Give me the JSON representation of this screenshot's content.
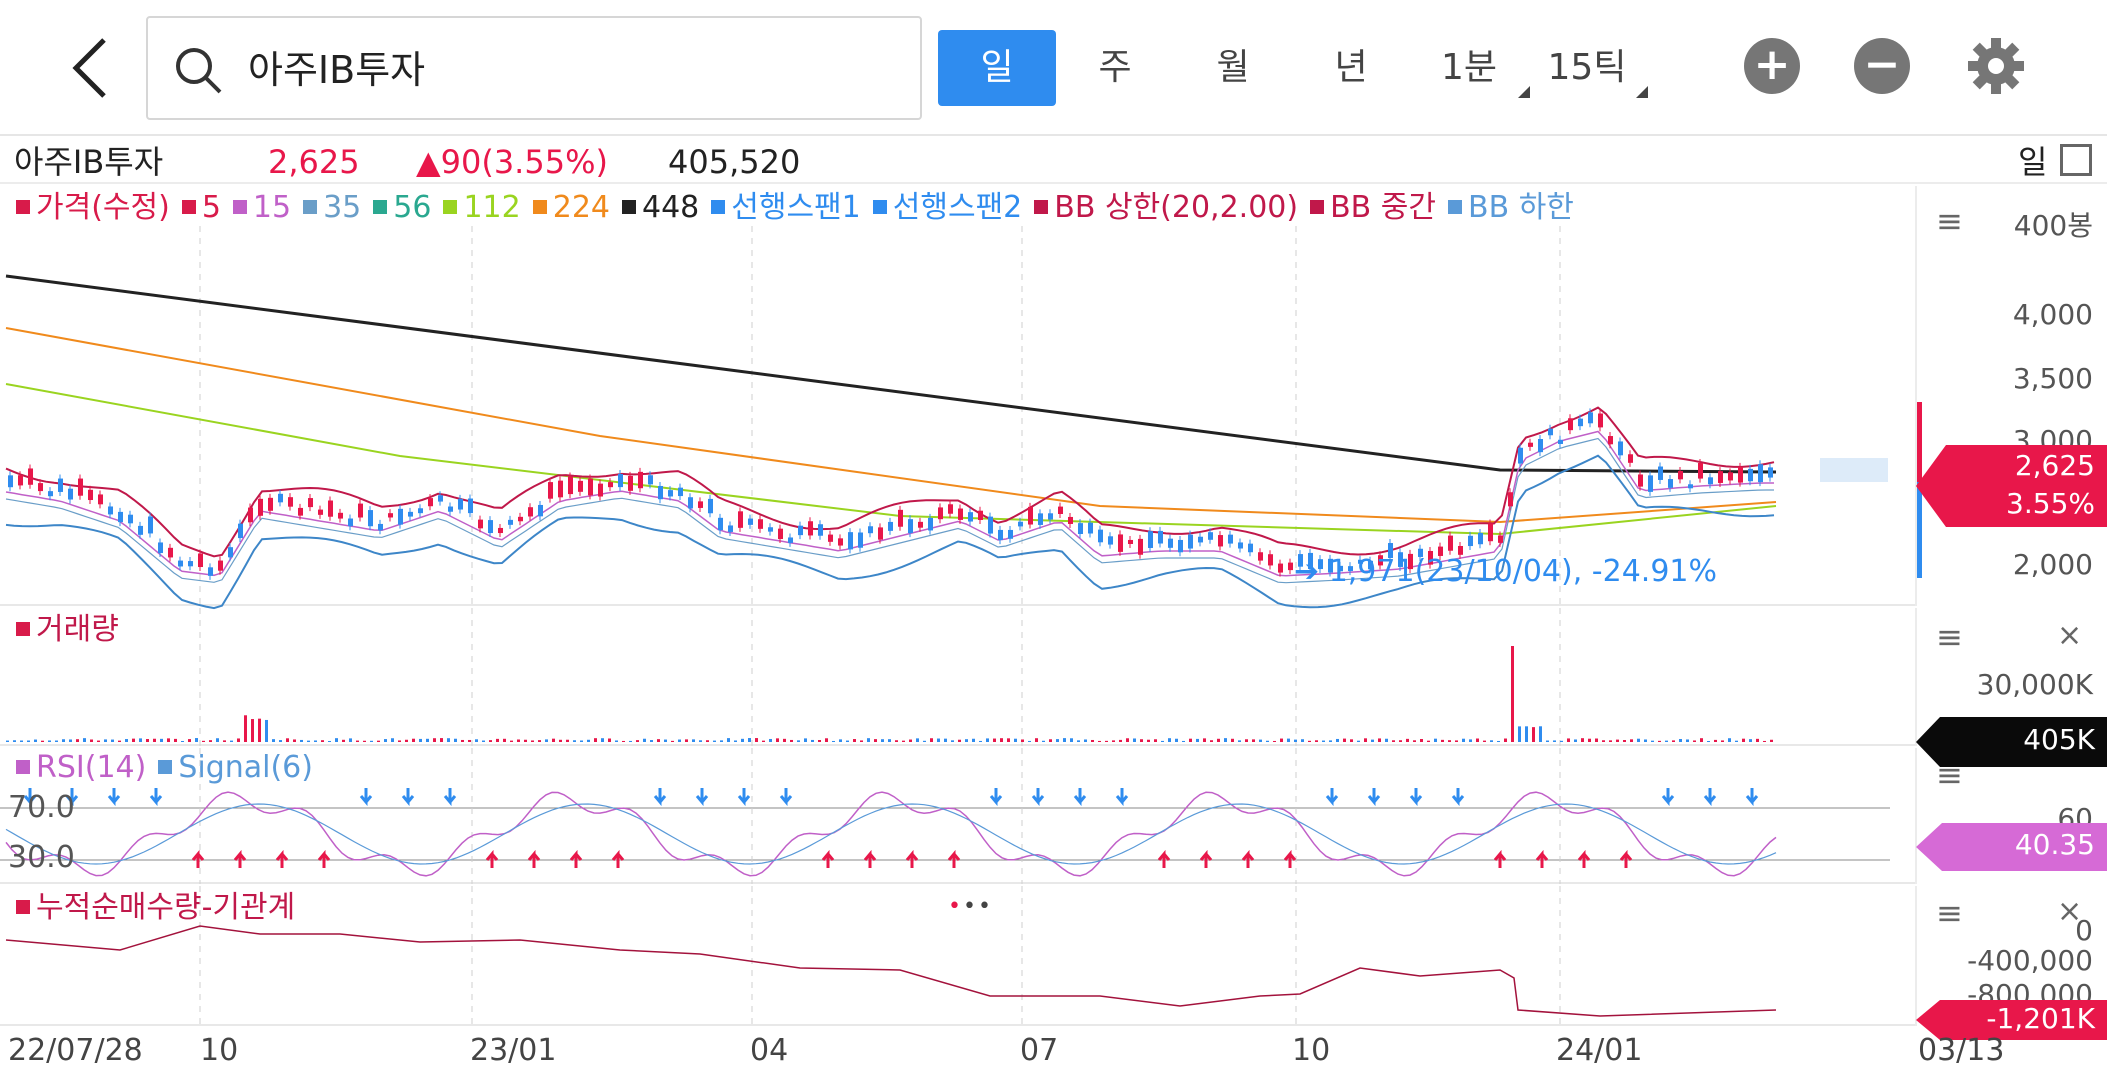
{
  "header": {
    "search_value": "아주IB투자",
    "timeframes": [
      {
        "label": "일",
        "active": true
      },
      {
        "label": "주",
        "active": false
      },
      {
        "label": "월",
        "active": false
      },
      {
        "label": "년",
        "active": false
      },
      {
        "label": "1분",
        "active": false
      },
      {
        "label": "15틱",
        "active": false
      }
    ],
    "icons": [
      "back-arrow-icon",
      "search-icon",
      "zoom-in-icon",
      "zoom-out-icon",
      "gear-icon"
    ]
  },
  "quote": {
    "name": "아주IB투자",
    "price": "2,625",
    "change": "▲90(3.55%)",
    "volume": "405,520",
    "period": "일"
  },
  "price_panel": {
    "legend": [
      {
        "label": "가격(수정)",
        "color": "#d81b4a"
      },
      {
        "label": "5",
        "color": "#d81b4a"
      },
      {
        "label": "15",
        "color": "#c060c8"
      },
      {
        "label": "35",
        "color": "#6a9ec8"
      },
      {
        "label": "56",
        "color": "#2aa890"
      },
      {
        "label": "112",
        "color": "#9ad420"
      },
      {
        "label": "224",
        "color": "#f08a1c"
      },
      {
        "label": "448",
        "color": "#222222"
      },
      {
        "label": "선행스팬1",
        "color": "#2f8cef"
      },
      {
        "label": "선행스팬2",
        "color": "#2f8cef"
      },
      {
        "label": "BB 상한(20,2.00)",
        "color": "#c0184a"
      },
      {
        "label": "BB 중간",
        "color": "#c0184a"
      },
      {
        "label": "BB 하한",
        "color": "#5a9ad8"
      }
    ],
    "count_label": "400봉",
    "y_ticks": [
      "4,000",
      "3,500",
      "3,000",
      "2,000"
    ],
    "annotation": "1,971(23/10/04), -24.91%",
    "price_tag": "2,625",
    "change_tag": "3.55%"
  },
  "volume_panel": {
    "title": "거래량",
    "y_tick": "30,000K",
    "tag": "405K"
  },
  "rsi_panel": {
    "legend": [
      {
        "label": "RSI(14)",
        "color": "#c060c8"
      },
      {
        "label": "Signal(6)",
        "color": "#5a9ad8"
      }
    ],
    "level_high": "70.0",
    "level_low": "30.0",
    "axis_tick": "60",
    "tag": "40.35"
  },
  "inst_panel": {
    "title": "누적순매수량-기관계",
    "y_ticks": [
      "0",
      "-400,000",
      "-800,000"
    ],
    "tag": "-1,201K"
  },
  "x_axis": [
    "22/07/28",
    "10",
    "23/01",
    "04",
    "07",
    "10",
    "24/01",
    "03/13"
  ],
  "colors": {
    "up": "#e8174a",
    "down": "#2f8cef",
    "accent": "#2f8cef"
  }
}
